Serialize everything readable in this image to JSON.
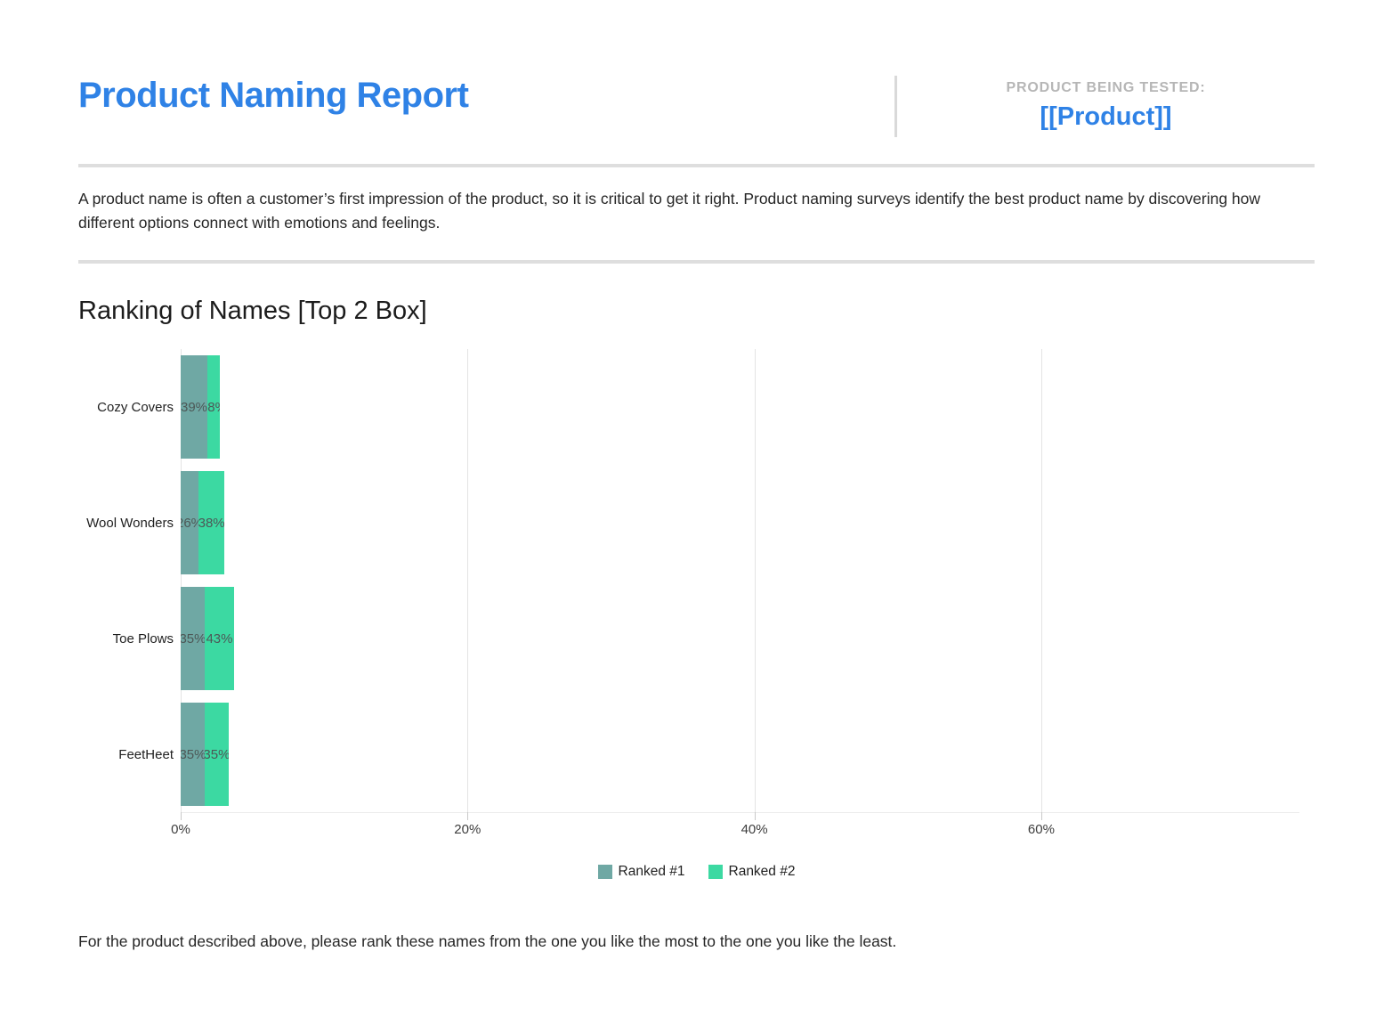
{
  "header": {
    "title": "Product Naming Report",
    "tested_label": "PRODUCT BEING TESTED:",
    "product_placeholder": "[[Product]]"
  },
  "intro": "A product name is often a customer’s first impression of the product, so it is critical to get it right. Product naming surveys identify the best product name by discovering how different options connect with emotions and feelings.",
  "section": {
    "title": "Ranking of Names [Top 2 Box]"
  },
  "chart_data": {
    "type": "bar",
    "orientation": "horizontal",
    "stacked": true,
    "title": "Ranking of Names [Top 2 Box]",
    "categories": [
      "Cozy Covers",
      "Wool Wonders",
      "Toe Plows",
      "FeetHeet"
    ],
    "series": [
      {
        "name": "Ranked #1",
        "color": "#6FA8A4",
        "values": [
          39,
          26,
          35,
          35
        ]
      },
      {
        "name": "Ranked #2",
        "color": "#3CD9A2",
        "values": [
          18,
          38,
          43,
          35
        ]
      }
    ],
    "value_suffix": "%",
    "x_ticks": [
      "0%",
      "20%",
      "40%",
      "60%"
    ],
    "x_tick_values": [
      0,
      20,
      40,
      60
    ],
    "xlim": [
      0,
      78
    ],
    "grid": true,
    "legend_position": "bottom"
  },
  "footer_note": "For the product described above, please rank these names from the one you like the most to the one you like the least."
}
